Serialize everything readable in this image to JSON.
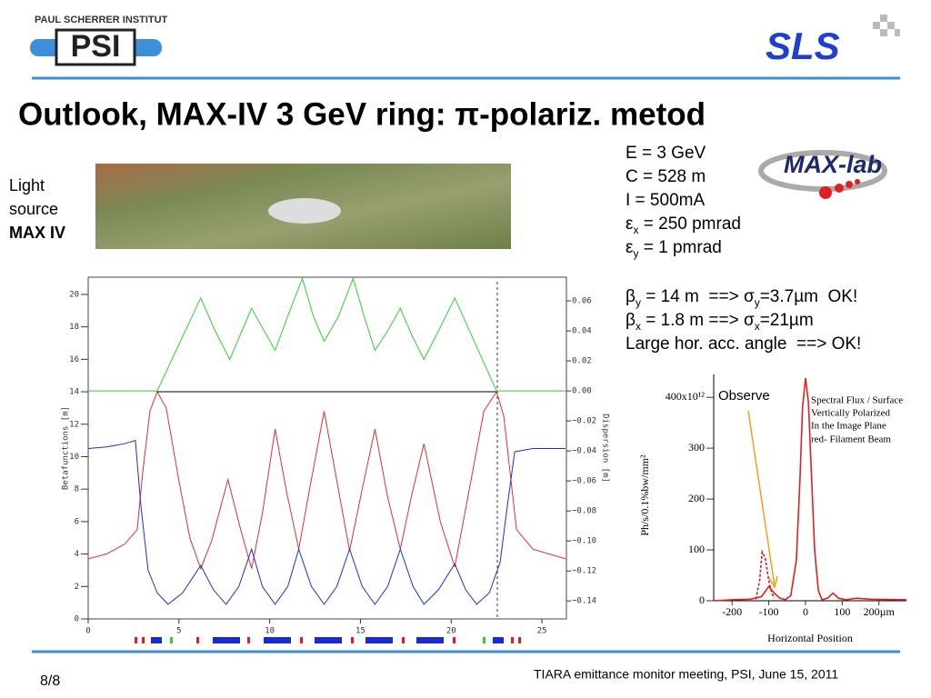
{
  "header": {
    "institute": "PAUL SCHERRER INSTITUT",
    "logo": "PSI",
    "lab": "SLS"
  },
  "title": "Outlook, MAX-IV 3 GeV ring:  π-polariz. metod",
  "side_label": [
    "Light",
    "source",
    "MAX IV"
  ],
  "maxlab": "MAX-lab",
  "params": [
    [
      "E = 3 GeV"
    ],
    [
      "C = 528 m"
    ],
    [
      "I = 500mA"
    ],
    [
      "ε",
      {
        "sub": "x"
      },
      " = 250 pmrad"
    ],
    [
      "ε",
      {
        "sub": "y"
      },
      " = 1 pmrad"
    ],
    [
      "β",
      {
        "sub": "y"
      },
      " = 14 m  ==> σ",
      {
        "sub": "y"
      },
      "=3.7µm  OK!"
    ],
    [
      "β",
      {
        "sub": "x"
      },
      " = 1.8 m ==> σ",
      {
        "sub": "x"
      },
      "=21µm"
    ],
    [
      "Large hor. acc. angle  ==> OK!"
    ]
  ],
  "chart_data": [
    {
      "type": "line",
      "y_label": "Betafunctions [m]",
      "y2_label": "Dispersion [m]",
      "xlim": [
        0,
        26.35
      ],
      "xticks": [
        0,
        5,
        10,
        15,
        20,
        25
      ],
      "ylim": [
        0,
        21.06
      ],
      "yticks": [
        0,
        2,
        4,
        6,
        8,
        10,
        12,
        14,
        16,
        18,
        20
      ],
      "y2lim": [
        -0.152,
        0.0758
      ],
      "y2ticks": [
        0.06,
        0.04,
        0.02,
        {
          "value": 0,
          "label": "0.00"
        },
        {
          "value": -0.02,
          "label": "−0.02"
        },
        {
          "value": -0.04,
          "label": "−0.04"
        },
        {
          "value": -0.06,
          "label": "−0.06"
        },
        {
          "value": -0.08,
          "label": "−0.08"
        },
        {
          "value": -0.1,
          "label": "−0.10"
        },
        {
          "value": -0.12,
          "label": "−0.12"
        },
        {
          "value": -0.14,
          "label": "−0.14"
        }
      ],
      "series": [
        {
          "color": "#e03030",
          "x": [
            0,
            1,
            2,
            2.7,
            3.0,
            3.4,
            3.8,
            4.3,
            5.0,
            5.6,
            6.2,
            6.8,
            7.7,
            8.4,
            9.0,
            9.6,
            10.3,
            10.9,
            11.6,
            12.2,
            13.0,
            13.7,
            14.4,
            15.1,
            15.8,
            16.5,
            17.2,
            17.8,
            18.5,
            19.4,
            20.2,
            21.0,
            21.8,
            22.5,
            22.9,
            23.3,
            23.6,
            24.5,
            26.3
          ],
          "values": [
            3.7,
            4.0,
            4.6,
            5.5,
            9,
            12.8,
            14,
            13,
            8.5,
            5,
            3.1,
            4.8,
            8.6,
            5.5,
            3.1,
            6.5,
            11.7,
            8,
            4.3,
            8,
            12.8,
            8.5,
            4.2,
            8,
            11.7,
            7.5,
            4.3,
            7.5,
            10.8,
            6,
            3.2,
            8,
            12.8,
            14,
            12.5,
            8.5,
            5.5,
            4.3,
            3.7
          ]
        },
        {
          "color": "#2030d0",
          "x": [
            0,
            1,
            2,
            2.6,
            2.9,
            3.3,
            3.8,
            4.4,
            5.2,
            6.2,
            6.9,
            7.6,
            8.3,
            9.0,
            9.6,
            10.3,
            11.0,
            11.6,
            12.3,
            13.0,
            13.7,
            14.4,
            15.1,
            15.8,
            16.5,
            17.2,
            17.9,
            18.5,
            19.3,
            20.2,
            20.8,
            21.4,
            22.1,
            22.7,
            23.1,
            23.5,
            24.5,
            26.3
          ],
          "values": [
            10.5,
            10.6,
            10.8,
            11,
            7,
            3,
            1.6,
            0.9,
            1.6,
            3.3,
            1.8,
            0.9,
            2,
            4.3,
            2,
            0.9,
            2,
            4.3,
            2,
            0.9,
            2,
            4.3,
            2,
            0.9,
            2,
            4.3,
            2,
            0.9,
            1.8,
            3.4,
            1.8,
            0.9,
            1.6,
            3.5,
            7,
            10.3,
            10.5,
            10.5
          ]
        },
        {
          "color": "#30d030",
          "axis": "y2",
          "x": [
            0,
            3.8,
            6.2,
            7.0,
            7.8,
            8.4,
            9.0,
            9.7,
            10.3,
            11.0,
            11.8,
            12.4,
            13.0,
            13.8,
            14.6,
            15.2,
            15.8,
            16.5,
            17.2,
            17.8,
            18.5,
            19.3,
            20.2,
            22.5,
            26.3
          ],
          "values": [
            0,
            0,
            0.062,
            0.04,
            0.021,
            0.038,
            0.055,
            0.04,
            0.027,
            0.05,
            0.075,
            0.05,
            0.033,
            0.05,
            0.075,
            0.05,
            0.027,
            0.04,
            0.055,
            0.038,
            0.021,
            0.04,
            0.062,
            0,
            0
          ]
        }
      ]
    },
    {
      "type": "line",
      "x_label": "Horizontal Position",
      "y_label": "Ph/s/0.1%bw/mm²",
      "annotations": [
        "Observe",
        "Spectral Flux / Surface",
        "Vertically Polarized",
        "In the Image Plane",
        " red- Filament Beam"
      ],
      "xlim": [
        -250,
        275
      ],
      "xticks": [
        -200,
        -100,
        0,
        100,
        {
          "value": 200,
          "label": "200µm"
        }
      ],
      "ylim": [
        0,
        445
      ],
      "yticks": [
        0,
        100,
        200,
        300,
        {
          "value": 400,
          "label": "400x10¹²"
        }
      ],
      "series": [
        {
          "color": "#e02020",
          "x": [
            -250,
            -200,
            -150,
            -120,
            -100,
            -85,
            -70,
            -55,
            -40,
            -25,
            -15,
            -8,
            0,
            8,
            15,
            25,
            35,
            45,
            60,
            75,
            90,
            110,
            140,
            175,
            275
          ],
          "values": [
            0,
            2,
            3,
            8,
            28,
            15,
            5,
            2,
            10,
            80,
            240,
            380,
            438,
            390,
            270,
            100,
            20,
            2,
            5,
            15,
            5,
            2,
            5,
            3,
            2
          ]
        },
        {
          "color": "#c02020",
          "dash": true,
          "x": [
            -135,
            -125,
            -118,
            -110,
            -100,
            -92,
            -85
          ],
          "values": [
            3,
            40,
            96,
            85,
            40,
            15,
            5
          ]
        }
      ]
    }
  ],
  "footer": {
    "page": "8/8",
    "note": "TIARA emittance monitor meeting, PSI, June 15, 2011"
  }
}
